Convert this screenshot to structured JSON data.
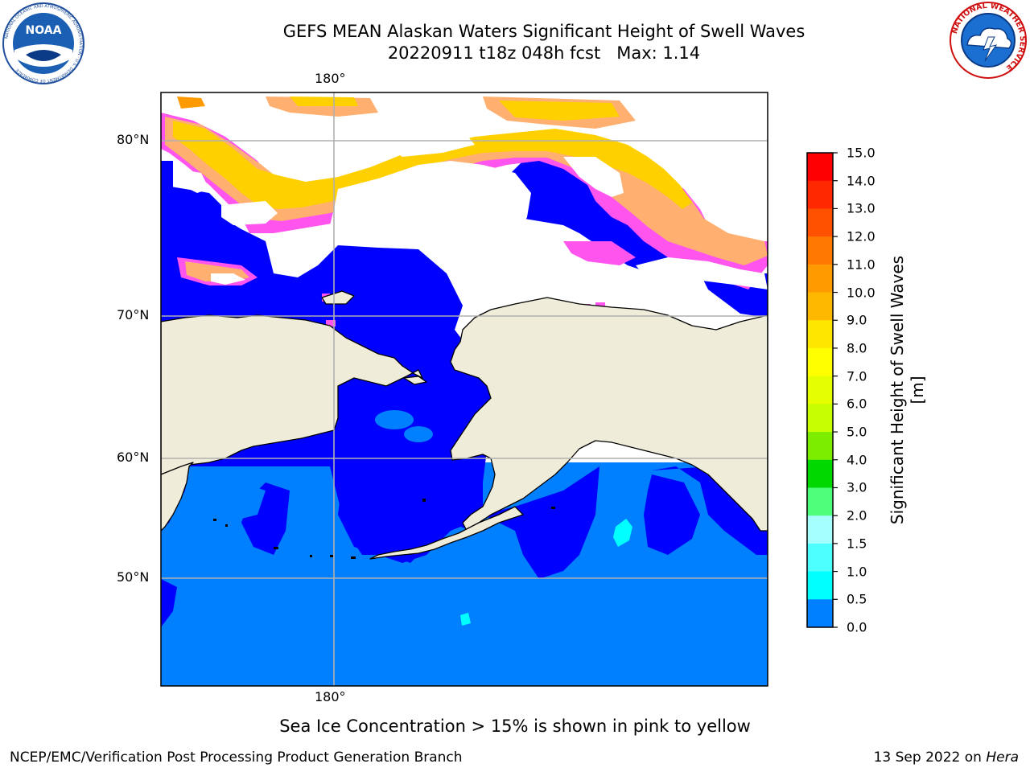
{
  "title": {
    "line1": "GEFS MEAN Alaskan Waters Significant Height of Swell Waves",
    "line2": "20220911 t18z 048h fcst   Max: 1.14"
  },
  "axes": {
    "top_lon": "180°",
    "bottom_lon": "180°",
    "lat_labels": [
      "80°N",
      "70°N",
      "60°N",
      "50°N"
    ]
  },
  "colorbar": {
    "title": "Significant Height of Swell Waves [m]",
    "ticks": [
      "15.0",
      "14.0",
      "13.0",
      "12.0",
      "11.0",
      "10.0",
      "9.0",
      "8.0",
      "7.0",
      "6.0",
      "5.0",
      "4.0",
      "3.0",
      "2.0",
      "1.5",
      "1.0",
      "0.5",
      "0.0"
    ],
    "colors": [
      "#ff0000",
      "#ff2800",
      "#ff5000",
      "#ff7800",
      "#ff9a00",
      "#ffb800",
      "#ffe600",
      "#ffff00",
      "#e6ff00",
      "#c8ff00",
      "#7ded00",
      "#00d800",
      "#4dff7a",
      "#a6ffff",
      "#4dffff",
      "#00ffff",
      "#0080ff",
      "#0000ff"
    ]
  },
  "legend_note": "Sea Ice Concentration > 15% is shown in pink to yellow",
  "footer": {
    "left": "NCEP/EMC/Verification Post Processing Product Generation Branch",
    "right_prefix": "13 Sep 2022 on ",
    "right_host": "Hera"
  },
  "logos": {
    "noaa": "NOAA",
    "noaa_ring": "NATIONAL OCEANIC AND ATMOSPHERIC ADMINISTRATION · U.S. DEPARTMENT OF COMMERCE",
    "nws_ring": "NATIONAL WEATHER SERVICE"
  },
  "colors": {
    "land": "#efedda",
    "open_ocean_low": "#0000ff",
    "ocean_mid": "#0080ff",
    "ice_pink": "#ff55ee",
    "ice_orange": "#ffb070",
    "ice_yellow": "#ffd000",
    "grid": "#b0b0b0"
  }
}
